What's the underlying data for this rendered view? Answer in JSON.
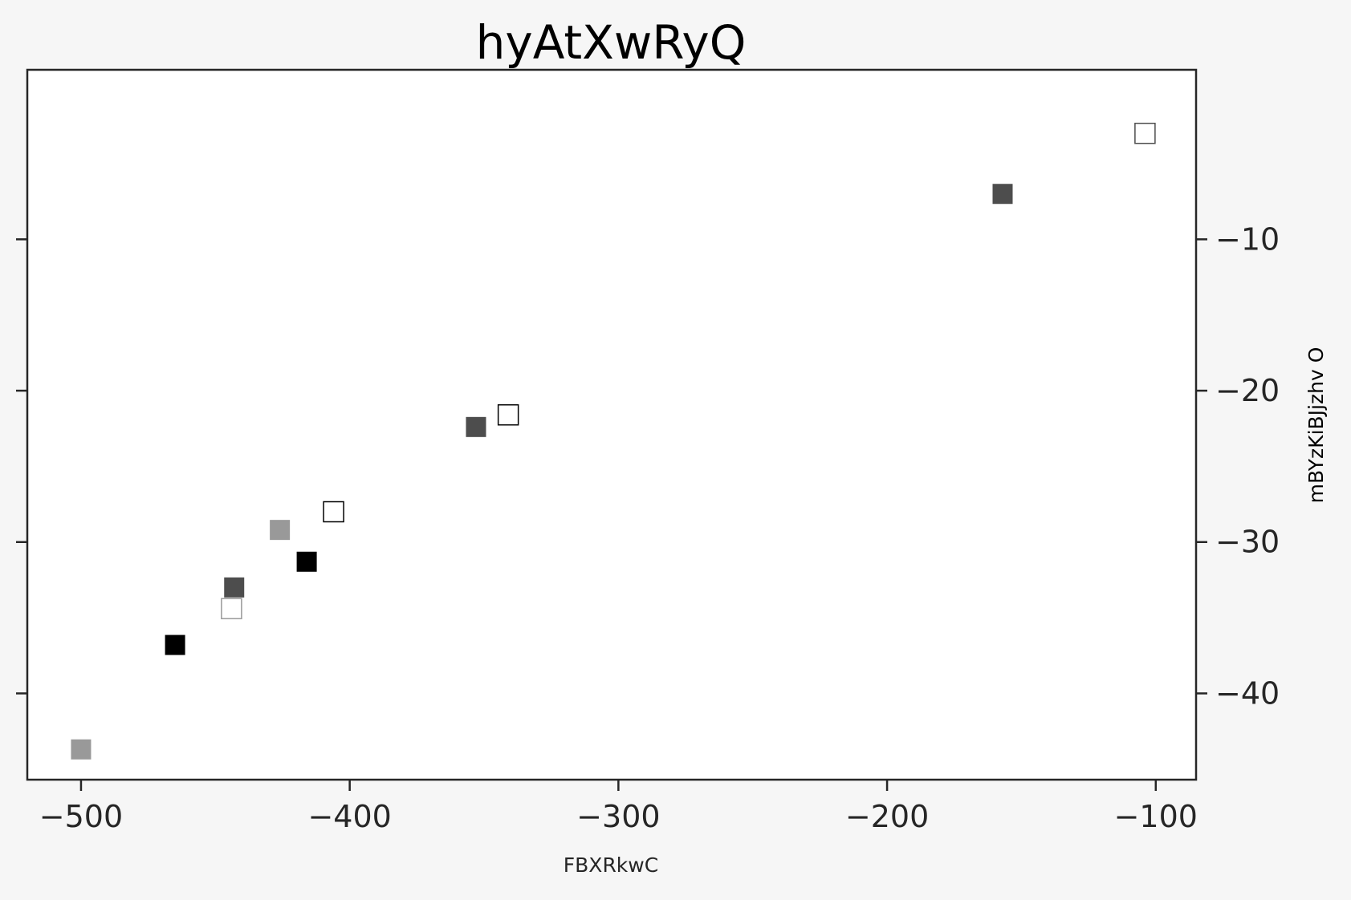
{
  "chart_data": {
    "type": "scatter",
    "title": "hyAtXwRyQ",
    "xlabel": "FBXRkwC",
    "ylabel": "mBYzKiBJjzhv O",
    "xlim": [
      -520,
      -85
    ],
    "ylim": [
      -45.7,
      1.2
    ],
    "x_ticks": [
      -500,
      -400,
      -300,
      -200,
      -100
    ],
    "x_tick_labels": [
      "−500",
      "−400",
      "−300",
      "−200",
      "−100"
    ],
    "y_ticks": [
      -10,
      -20,
      -30,
      -40
    ],
    "y_tick_labels": [
      "−10",
      "−20",
      "−30",
      "−40"
    ],
    "y_axis_side": "right",
    "grid": false,
    "marker": "square",
    "points": [
      {
        "x": -500,
        "y": -43.7,
        "color": "#999999",
        "filled": true
      },
      {
        "x": -465,
        "y": -36.8,
        "color": "#000000",
        "filled": true
      },
      {
        "x": -443,
        "y": -33.0,
        "color": "#4d4d4d",
        "filled": true
      },
      {
        "x": -444,
        "y": -34.4,
        "color": "#999999",
        "filled": false
      },
      {
        "x": -426,
        "y": -29.2,
        "color": "#999999",
        "filled": true
      },
      {
        "x": -416,
        "y": -31.3,
        "color": "#000000",
        "filled": true
      },
      {
        "x": -406,
        "y": -28.0,
        "color": "#000000",
        "filled": false
      },
      {
        "x": -353,
        "y": -22.4,
        "color": "#4d4d4d",
        "filled": true
      },
      {
        "x": -341,
        "y": -21.6,
        "color": "#000000",
        "filled": false
      },
      {
        "x": -157,
        "y": -7.0,
        "color": "#4d4d4d",
        "filled": true
      },
      {
        "x": -104,
        "y": -3.0,
        "color": "#4d4d4d",
        "filled": false
      }
    ]
  }
}
